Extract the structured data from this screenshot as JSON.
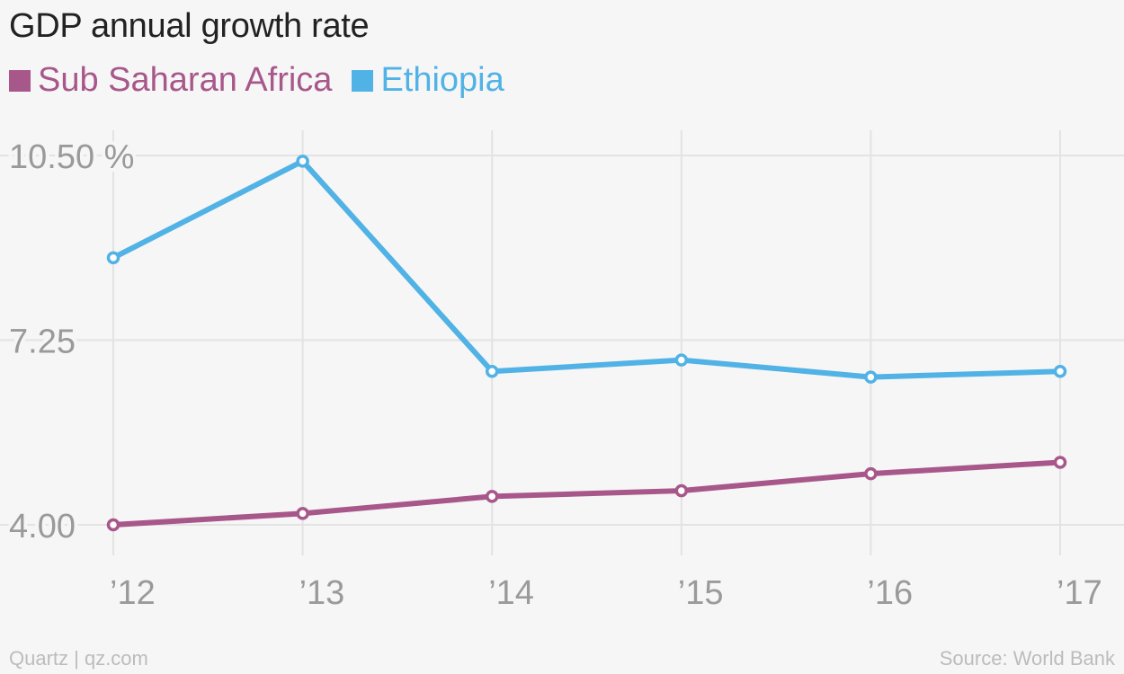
{
  "header": {
    "title": "GDP annual growth rate"
  },
  "legend": [
    {
      "label": "Sub Saharan Africa",
      "color": "#a8578a"
    },
    {
      "label": "Ethiopia",
      "color": "#51b2e5"
    }
  ],
  "footer": {
    "credit": "Quartz | qz.com",
    "source": "Source: World Bank"
  },
  "chart_data": {
    "type": "line",
    "title": "GDP annual growth rate",
    "xlabel": "",
    "ylabel": "",
    "categories": [
      "’12",
      "’13",
      "’14",
      "’15",
      "’16",
      "’17"
    ],
    "y_ticks": [
      {
        "value": 10.5,
        "label": "10.50 %"
      },
      {
        "value": 7.25,
        "label": "7.25"
      },
      {
        "value": 4.0,
        "label": "4.00"
      }
    ],
    "ylim": [
      4.0,
      10.5
    ],
    "grid": true,
    "legend_position": "top-left",
    "series": [
      {
        "name": "Sub Saharan Africa",
        "color": "#a8578a",
        "values": [
          4.0,
          4.2,
          4.5,
          4.6,
          4.9,
          5.1
        ]
      },
      {
        "name": "Ethiopia",
        "color": "#51b2e5",
        "values": [
          8.7,
          10.4,
          6.7,
          6.9,
          6.6,
          6.7
        ]
      }
    ]
  }
}
